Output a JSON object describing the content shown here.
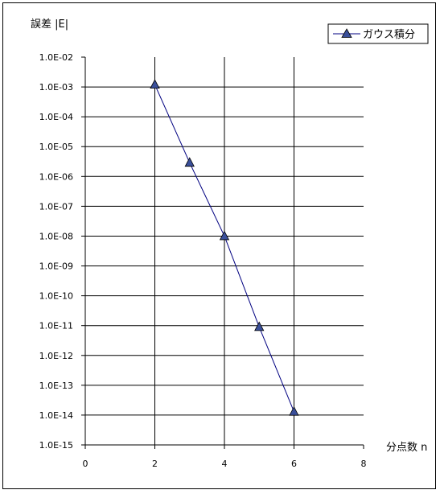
{
  "chart_data": {
    "type": "scatter",
    "ylabel": "誤差 |E|",
    "xlabel": "分点数 n",
    "x_ticks": [
      "0",
      "2",
      "4",
      "6",
      "8"
    ],
    "y_ticks": [
      "1.0E-02",
      "1.0E-03",
      "1.0E-04",
      "1.0E-05",
      "1.0E-06",
      "1.0E-07",
      "1.0E-08",
      "1.0E-09",
      "1.0E-10",
      "1.0E-11",
      "1.0E-12",
      "1.0E-13",
      "1.0E-14",
      "1.0E-15"
    ],
    "xlim": [
      0,
      8
    ],
    "ylim": [
      1e-15,
      0.01
    ],
    "y_scale": "log",
    "grid": "vertical and horizontal major gridlines",
    "legend_position": "top-right",
    "series": [
      {
        "name": "ガウス積分",
        "marker": "triangle",
        "color": "#000080",
        "marker_fill": "#3a4f9a",
        "x": [
          2,
          3,
          4,
          5,
          6
        ],
        "y": [
          0.0012,
          2.9e-06,
          1e-08,
          9e-12,
          1.3e-14
        ]
      }
    ]
  }
}
